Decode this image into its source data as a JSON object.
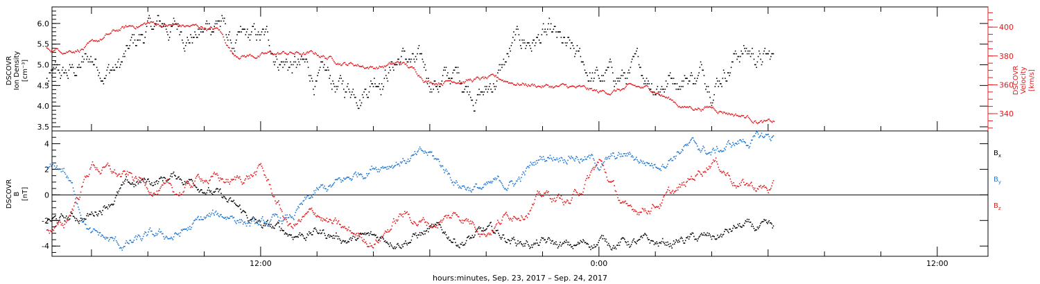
{
  "colors": {
    "density": "#000000",
    "velocity": "#e41a1c",
    "bx": "#000000",
    "by": "#1f78d4",
    "bz": "#e41a1c"
  },
  "chart_data": [
    {
      "type": "scatter",
      "panel": "top",
      "ylabel_left": [
        "DSCOVR",
        "Ion Density",
        "[cm⁻³]"
      ],
      "ylabel_right": [
        "DSCOVR",
        "Velocity",
        "[km/s]"
      ],
      "ylim_left": [
        3.4,
        6.4
      ],
      "ylim_right": [
        328,
        414
      ],
      "left_ticks": [
        "3.5",
        "4.0",
        "4.5",
        "5.0",
        "5.5",
        "6.0"
      ],
      "left_tick_values": [
        3.5,
        4.0,
        4.5,
        5.0,
        5.5,
        6.0
      ],
      "right_ticks": [
        "340",
        "360",
        "380",
        "400"
      ],
      "right_tick_values": [
        340,
        360,
        380,
        400
      ],
      "series": [
        {
          "axis": "left",
          "x_hours": [
            5.0,
            6.0,
            7.0,
            8.0,
            9.0,
            10.0,
            10.5,
            11.0,
            12.0,
            13.0,
            14.0,
            15.0,
            16.0,
            17.0,
            18.0,
            19.0,
            20.0,
            21.0,
            22.0,
            23.0,
            24.0,
            25.0,
            26.0,
            27.0,
            28.0,
            29.0,
            30.0
          ],
          "values": [
            4.6,
            5.1,
            5.0,
            5.8,
            5.9,
            5.8,
            6.2,
            5.4,
            5.5,
            5.1,
            4.6,
            4.3,
            4.9,
            5.3,
            4.6,
            4.7,
            4.4,
            5.4,
            5.7,
            5.0,
            4.6,
            4.7,
            4.7,
            4.9,
            4.8,
            5.5,
            5.1
          ]
        },
        {
          "axis": "right",
          "x_hours": [
            5.0,
            6.0,
            7.0,
            8.0,
            9.0,
            10.0,
            10.5,
            11.0,
            12.0,
            13.0,
            14.0,
            15.0,
            16.0,
            17.0,
            18.0,
            19.0,
            20.0,
            21.0,
            22.0,
            23.0,
            24.0,
            25.0,
            26.0,
            27.0,
            28.0,
            29.0,
            30.0
          ],
          "values": [
            385,
            388,
            398,
            403,
            401,
            400,
            398,
            382,
            381,
            382,
            381,
            376,
            373,
            375,
            363,
            365,
            364,
            362,
            360,
            358,
            354,
            358,
            356,
            345,
            345,
            340,
            334
          ]
        }
      ]
    },
    {
      "type": "scatter",
      "panel": "bottom",
      "ylabel": [
        "DSCOVR",
        "B",
        "[nT]"
      ],
      "ylim": [
        -4.8,
        5.0
      ],
      "ticks": [
        "-4",
        "-2",
        "0",
        "2",
        "4"
      ],
      "tick_values": [
        -4,
        -2,
        0,
        2,
        4
      ],
      "legend": [
        "B",
        "B",
        "B"
      ],
      "legend_subscripts": [
        "x",
        "y",
        "z"
      ],
      "series": [
        {
          "x_hours": [
            5.0,
            6.0,
            7.0,
            8.0,
            9.0,
            10.0,
            11.0,
            12.0,
            13.0,
            14.0,
            15.0,
            16.0,
            17.0,
            18.0,
            19.0,
            20.0,
            21.0,
            22.0,
            23.0,
            24.0,
            25.0,
            26.0,
            27.0,
            28.0,
            29.0,
            30.0
          ],
          "values": [
            -2.0,
            -1.5,
            0.5,
            1.0,
            1.5,
            1.0,
            -1.0,
            -2.5,
            -3.0,
            -2.8,
            -3.3,
            -3.5,
            -3.2,
            -2.8,
            -3.5,
            -3.0,
            -3.5,
            -3.8,
            -4.2,
            -3.5,
            -3.6,
            -4.0,
            -3.5,
            -3.5,
            -2.5,
            -3.0
          ]
        },
        {
          "x_hours": [
            5.0,
            6.0,
            7.0,
            8.0,
            9.0,
            10.0,
            11.0,
            12.0,
            13.0,
            14.0,
            15.0,
            16.0,
            17.0,
            18.0,
            19.0,
            20.0,
            21.0,
            22.0,
            23.0,
            24.0,
            25.0,
            26.0,
            27.0,
            28.0,
            29.0,
            30.0
          ],
          "values": [
            2.0,
            -3.0,
            -4.0,
            -3.5,
            -3.2,
            -2.0,
            -1.5,
            -2.5,
            -2.0,
            0.0,
            1.0,
            2.5,
            3.0,
            3.0,
            1.0,
            0.5,
            1.0,
            3.0,
            3.5,
            2.5,
            3.0,
            2.5,
            4.0,
            3.3,
            4.2,
            4.5
          ]
        },
        {
          "x_hours": [
            5.0,
            6.0,
            7.0,
            8.0,
            9.0,
            10.0,
            11.0,
            12.0,
            13.0,
            14.0,
            15.0,
            16.0,
            17.0,
            18.0,
            19.0,
            20.0,
            21.0,
            22.0,
            23.0,
            24.0,
            25.0,
            26.0,
            27.0,
            28.0,
            29.0,
            30.0
          ],
          "values": [
            -2.5,
            2.5,
            1.5,
            0.8,
            0.0,
            1.5,
            1.0,
            2.0,
            -2.5,
            -1.5,
            -3.0,
            -3.5,
            -1.5,
            -2.2,
            -1.5,
            -2.5,
            -1.2,
            0.0,
            -0.5,
            2.5,
            -1.5,
            -0.5,
            0.5,
            3.0,
            1.0,
            0.5
          ]
        }
      ]
    }
  ],
  "x_axis": {
    "range_hours": [
      4.6,
      37.8
    ],
    "labels": [
      "12:00",
      "0:00",
      "12:00"
    ],
    "label_hours": [
      12,
      24,
      36
    ],
    "xlabel": "hours:minutes, Sep. 23, 2017 – Sep. 24, 2017"
  }
}
